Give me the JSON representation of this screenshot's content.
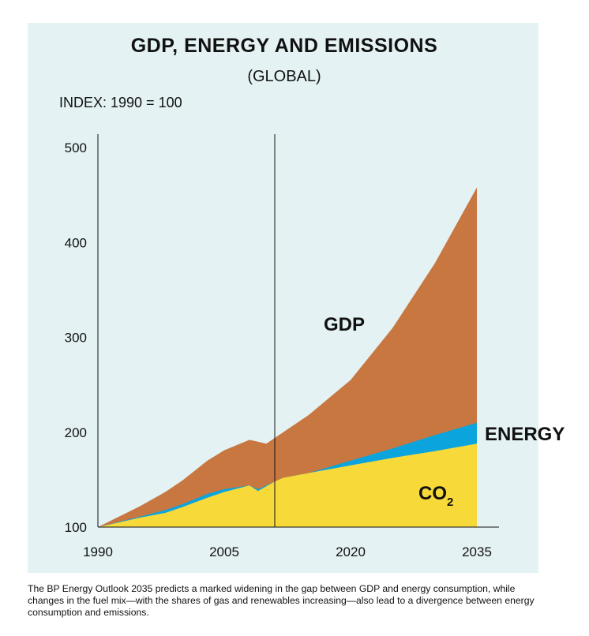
{
  "header": {
    "title": "GDP, ENERGY AND EMISSIONS",
    "subtitle": "(GLOBAL)",
    "index_label": "INDEX: 1990 = 100"
  },
  "caption": "The BP Energy Outlook 2035 predicts a marked widening in the gap between GDP and energy consumption, while changes in the fuel mix—with the shares of gas and renewables increasing—also lead to a divergence between energy consumption and emissions.",
  "colors": {
    "background_panel": "#e4f2f4",
    "gdp": "#c87741",
    "energy": "#0ba4dc",
    "co2": "#f7d93a",
    "axis": "#111111"
  },
  "chart_data": {
    "type": "area",
    "title": "GDP, ENERGY AND EMISSIONS",
    "subtitle": "(GLOBAL)",
    "ylabel": "INDEX: 1990 = 100",
    "xlim": [
      1990,
      2035
    ],
    "ylim": [
      100,
      500
    ],
    "x_ticks": [
      1990,
      2005,
      2020,
      2035
    ],
    "y_ticks": [
      100,
      200,
      300,
      400,
      500
    ],
    "divider_year": 2011,
    "grid": false,
    "stacked": false,
    "x": [
      1990,
      1995,
      1998,
      2000,
      2003,
      2005,
      2008,
      2009,
      2010,
      2011,
      2012,
      2015,
      2020,
      2025,
      2030,
      2035
    ],
    "series": [
      {
        "name": "GDP",
        "color": "#c87741",
        "values": [
          100,
          122,
          137,
          149,
          170,
          181,
          192,
          190,
          188,
          194,
          200,
          218,
          255,
          310,
          378,
          458
        ]
      },
      {
        "name": "ENERGY",
        "color": "#0ba4dc",
        "values": [
          100,
          111,
          118,
          124,
          135,
          140,
          144,
          140,
          144,
          148,
          152,
          157,
          170,
          183,
          197,
          210
        ]
      },
      {
        "name": "CO2",
        "color": "#f7d93a",
        "values": [
          100,
          110,
          115,
          121,
          131,
          137,
          144,
          138,
          143,
          148,
          152,
          157,
          165,
          173,
          180,
          188
        ]
      }
    ],
    "series_labels": [
      "GDP",
      "ENERGY",
      "CO2"
    ]
  }
}
